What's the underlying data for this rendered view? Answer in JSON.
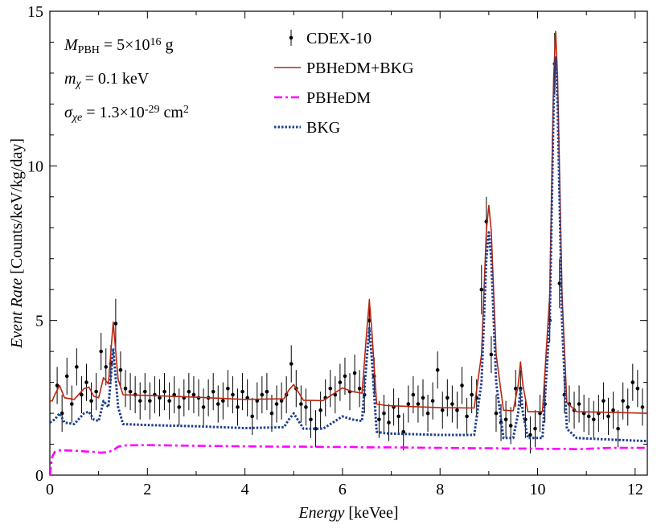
{
  "chart_data": {
    "type": "line",
    "x_label": [
      {
        "text": "Energy",
        "style": "italic"
      },
      {
        "text": " [keVee]"
      }
    ],
    "y_label": [
      {
        "text": "Event Rate",
        "style": "italic"
      },
      {
        "text": " [Counts/keV/kg/day]"
      }
    ],
    "annotations": [
      [
        {
          "text": "M",
          "style": "italic"
        },
        {
          "text": "PBH",
          "style": "sub"
        },
        {
          "text": " = 5×10"
        },
        {
          "text": "16",
          "style": "sup"
        },
        {
          "text": " g"
        }
      ],
      [
        {
          "text": "m",
          "style": "italic"
        },
        {
          "text": "χ",
          "style": "sub-italic"
        },
        {
          "text": " = 0.1 keV"
        }
      ],
      [
        {
          "text": "σ",
          "style": "italic"
        },
        {
          "text": "χe",
          "style": "sub-italic"
        },
        {
          "text": " = 1.3×10"
        },
        {
          "text": "-29",
          "style": "sup"
        },
        {
          "text": " cm"
        },
        {
          "text": "2",
          "style": "sup"
        }
      ]
    ],
    "xlim": [
      0,
      12.25
    ],
    "ylim": [
      0,
      15
    ],
    "xticks": [
      0,
      2,
      4,
      6,
      8,
      10,
      12
    ],
    "yticks": [
      0,
      5,
      10,
      15
    ],
    "xminorticks": [
      1,
      3,
      5,
      7,
      9,
      11
    ],
    "yminorticks": [
      1,
      2,
      3,
      4,
      6,
      7,
      8,
      9,
      11,
      12,
      13,
      14
    ],
    "x": [
      0,
      0.05,
      0.1,
      0.2,
      0.3,
      0.5,
      0.7,
      0.8,
      0.9,
      1.0,
      1.1,
      1.2,
      1.3,
      1.4,
      1.5,
      2,
      3,
      4,
      4.8,
      4.9,
      5.0,
      5.1,
      5.2,
      5.6,
      5.9,
      6.0,
      6.2,
      6.4,
      6.5,
      6.55,
      6.6,
      6.7,
      6.9,
      8.0,
      8.7,
      8.85,
      8.95,
      9.0,
      9.05,
      9.15,
      9.3,
      9.5,
      9.6,
      9.65,
      9.7,
      9.8,
      10.1,
      10.25,
      10.33,
      10.37,
      10.41,
      10.5,
      10.6,
      10.8,
      11.5,
      12.25
    ],
    "series": [
      {
        "name": "CDEX-10",
        "kind": "errorbar",
        "color": "#000000",
        "x": [
          0.15,
          0.25,
          0.35,
          0.45,
          0.55,
          0.65,
          0.75,
          0.85,
          0.95,
          1.05,
          1.15,
          1.25,
          1.35,
          1.45,
          1.55,
          1.65,
          1.75,
          1.85,
          1.95,
          2.05,
          2.15,
          2.25,
          2.35,
          2.45,
          2.55,
          2.65,
          2.75,
          2.85,
          2.95,
          3.05,
          3.15,
          3.25,
          3.35,
          3.45,
          3.55,
          3.65,
          3.75,
          3.85,
          3.95,
          4.05,
          4.15,
          4.25,
          4.35,
          4.45,
          4.55,
          4.65,
          4.75,
          4.85,
          4.95,
          5.05,
          5.15,
          5.25,
          5.35,
          5.45,
          5.55,
          5.65,
          5.75,
          5.85,
          5.95,
          6.05,
          6.15,
          6.25,
          6.35,
          6.45,
          6.55,
          6.65,
          6.75,
          6.85,
          6.95,
          7.05,
          7.15,
          7.25,
          7.35,
          7.45,
          7.55,
          7.65,
          7.75,
          7.85,
          7.95,
          8.05,
          8.15,
          8.25,
          8.35,
          8.45,
          8.55,
          8.65,
          8.75,
          8.85,
          8.95,
          9.05,
          9.15,
          9.25,
          9.35,
          9.45,
          9.55,
          9.65,
          9.75,
          9.85,
          9.95,
          10.05,
          10.15,
          10.25,
          10.35,
          10.45,
          10.55,
          10.65,
          10.75,
          10.85,
          10.95,
          11.05,
          11.15,
          11.25,
          11.35,
          11.45,
          11.55,
          11.65,
          11.75,
          11.85,
          11.95,
          12.05,
          12.15
        ],
        "values": [
          2.9,
          2.0,
          3.2,
          2.3,
          3.5,
          2.6,
          3.0,
          2.4,
          2.7,
          4.0,
          3.5,
          3.6,
          4.9,
          3.4,
          2.8,
          2.7,
          2.6,
          2.4,
          2.7,
          2.4,
          2.6,
          2.5,
          2.7,
          2.4,
          2.6,
          2.2,
          2.5,
          2.7,
          2.6,
          2.5,
          2.2,
          2.5,
          2.7,
          2.3,
          2.4,
          2.8,
          2.6,
          2.2,
          2.7,
          2.5,
          1.9,
          2.4,
          2.6,
          2.7,
          2.0,
          2.3,
          2.4,
          2.6,
          3.6,
          2.8,
          2.3,
          2.2,
          1.8,
          1.5,
          2.1,
          2.5,
          2.8,
          2.6,
          3.0,
          3.2,
          2.7,
          3.3,
          2.8,
          2.6,
          5.0,
          3.2,
          1.8,
          2.0,
          1.7,
          2.2,
          1.9,
          1.4,
          2.3,
          2.6,
          2.3,
          2.5,
          2.0,
          2.4,
          3.4,
          2.1,
          2.5,
          2.3,
          2.1,
          2.9,
          1.9,
          2.6,
          2.5,
          6.0,
          8.2,
          3.9,
          2.0,
          1.7,
          1.8,
          1.6,
          2.8,
          2.8,
          1.8,
          1.3,
          1.5,
          2.0,
          2.3,
          5.0,
          13.3,
          6.2,
          2.6,
          2.3,
          2.1,
          2.3,
          2.0,
          1.9,
          1.8,
          2.0,
          2.4,
          1.9,
          2.1,
          1.5,
          2.4,
          2.2,
          3.0,
          2.8,
          2.2
        ],
        "errors": [
          0.6,
          0.6,
          0.6,
          0.6,
          0.6,
          0.6,
          0.6,
          0.6,
          0.6,
          0.6,
          0.6,
          0.6,
          0.8,
          0.6,
          0.6,
          0.6,
          0.6,
          0.6,
          0.6,
          0.6,
          0.6,
          0.6,
          0.6,
          0.6,
          0.6,
          0.6,
          0.6,
          0.6,
          0.6,
          0.6,
          0.6,
          0.6,
          0.6,
          0.6,
          0.6,
          0.6,
          0.6,
          0.6,
          0.6,
          0.6,
          0.6,
          0.6,
          0.6,
          0.6,
          0.6,
          0.6,
          0.6,
          0.6,
          0.6,
          0.6,
          0.6,
          0.6,
          0.6,
          0.6,
          0.6,
          0.6,
          0.6,
          0.6,
          0.6,
          0.6,
          0.6,
          0.6,
          0.6,
          0.6,
          0.7,
          0.6,
          0.6,
          0.6,
          0.6,
          0.6,
          0.6,
          0.6,
          0.6,
          0.6,
          0.6,
          0.6,
          0.6,
          0.6,
          0.6,
          0.6,
          0.6,
          0.6,
          0.6,
          0.6,
          0.6,
          0.6,
          0.6,
          0.8,
          0.8,
          0.6,
          0.6,
          0.6,
          0.6,
          0.6,
          0.6,
          0.6,
          0.6,
          0.6,
          0.6,
          0.6,
          0.6,
          0.7,
          1.0,
          0.8,
          0.6,
          0.6,
          0.6,
          0.6,
          0.6,
          0.6,
          0.6,
          0.6,
          0.6,
          0.6,
          0.6,
          0.6,
          0.6,
          0.6,
          0.6,
          0.6,
          0.6
        ]
      },
      {
        "name": "PBHeDM+BKG",
        "kind": "solid",
        "color": "#b8260f",
        "values": [
          2.4,
          2.4,
          2.6,
          2.9,
          2.5,
          2.45,
          2.8,
          2.85,
          2.55,
          2.5,
          3.15,
          2.95,
          4.95,
          3.1,
          2.6,
          2.58,
          2.52,
          2.45,
          2.47,
          2.75,
          2.93,
          2.67,
          2.42,
          2.41,
          2.72,
          2.82,
          2.7,
          2.65,
          4.7,
          5.65,
          4.7,
          2.3,
          2.25,
          2.18,
          2.17,
          3.9,
          7.9,
          8.72,
          7.9,
          3.9,
          2.1,
          2.08,
          2.9,
          3.66,
          2.9,
          2.05,
          2.05,
          5.85,
          12.85,
          14.35,
          12.85,
          5.85,
          2.35,
          2.05,
          2.03,
          2.0
        ]
      },
      {
        "name": "PBHeDM",
        "kind": "dashdot",
        "color": "#ff00ff",
        "values": [
          0.0,
          0.6,
          0.75,
          0.8,
          0.8,
          0.79,
          0.77,
          0.76,
          0.75,
          0.73,
          0.73,
          0.75,
          0.8,
          0.92,
          0.96,
          0.97,
          0.95,
          0.93,
          0.92,
          0.92,
          0.92,
          0.92,
          0.92,
          0.91,
          0.91,
          0.91,
          0.91,
          0.9,
          0.9,
          0.9,
          0.9,
          0.9,
          0.9,
          0.88,
          0.87,
          0.87,
          0.87,
          0.87,
          0.87,
          0.87,
          0.86,
          0.86,
          0.86,
          0.86,
          0.86,
          0.86,
          0.85,
          0.85,
          0.85,
          0.85,
          0.85,
          0.85,
          0.85,
          0.84,
          0.88,
          0.88
        ]
      },
      {
        "name": "BKG",
        "kind": "dotted",
        "color": "#1f3f8f",
        "values": [
          1.7,
          1.75,
          1.8,
          2.0,
          1.7,
          1.65,
          2.0,
          2.05,
          1.8,
          1.75,
          2.4,
          2.2,
          4.1,
          2.2,
          1.65,
          1.62,
          1.58,
          1.52,
          1.55,
          1.8,
          2.0,
          1.75,
          1.5,
          1.5,
          1.8,
          1.9,
          1.8,
          1.75,
          3.8,
          4.75,
          3.8,
          1.4,
          1.35,
          1.3,
          1.3,
          3.0,
          7.0,
          7.85,
          7.0,
          3.0,
          1.2,
          1.2,
          2.0,
          2.8,
          2.0,
          1.2,
          1.2,
          5.0,
          12.0,
          13.5,
          12.0,
          5.0,
          1.5,
          1.2,
          1.15,
          1.1
        ]
      }
    ]
  }
}
